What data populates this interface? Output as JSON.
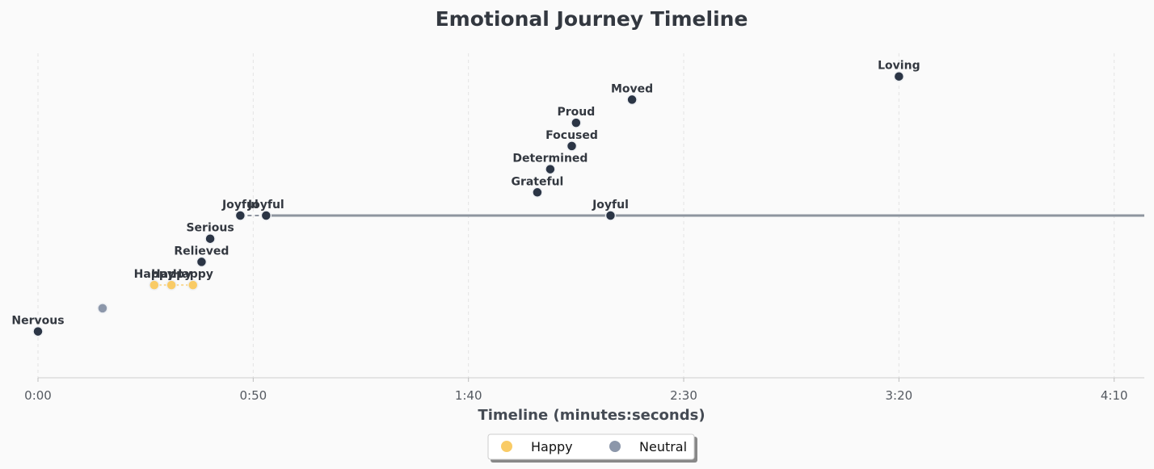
{
  "chart_data": {
    "type": "scatter",
    "title": "Emotional Journey Timeline",
    "xlabel": "Timeline (minutes:seconds)",
    "ylabel": "",
    "xlim": [
      0,
      257
    ],
    "ylim": [
      -2,
      12
    ],
    "x_ticks": [
      {
        "value": 0,
        "label": "0:00"
      },
      {
        "value": 50,
        "label": "0:50"
      },
      {
        "value": 100,
        "label": "1:40"
      },
      {
        "value": 150,
        "label": "2:30"
      },
      {
        "value": 200,
        "label": "3:20"
      },
      {
        "value": 250,
        "label": "4:10"
      }
    ],
    "grid": "x-dashed",
    "legend_position": "bottom-center",
    "colors": {
      "happy": "#f9cb66",
      "neutral": "#8c97aa",
      "other": "#2b3545",
      "line": "#8e959f"
    },
    "reference_line": {
      "y": 5,
      "x_start": 52,
      "x_end": 257
    },
    "points": [
      {
        "x": 0,
        "y": 0,
        "emotion": "Nervous",
        "category": "other",
        "label": "Nervous"
      },
      {
        "x": 15,
        "y": 1,
        "emotion": "Neutral",
        "category": "neutral",
        "label": ""
      },
      {
        "x": 27,
        "y": 2,
        "emotion": "Happy",
        "category": "happy",
        "label": "Happy"
      },
      {
        "x": 31,
        "y": 2,
        "emotion": "Happy",
        "category": "happy",
        "label": "Happy"
      },
      {
        "x": 36,
        "y": 2,
        "emotion": "Happy",
        "category": "happy",
        "label": "Happy"
      },
      {
        "x": 38,
        "y": 3,
        "emotion": "Relieved",
        "category": "other",
        "label": "Relieved"
      },
      {
        "x": 40,
        "y": 4,
        "emotion": "Serious",
        "category": "other",
        "label": "Serious"
      },
      {
        "x": 47,
        "y": 5,
        "emotion": "Joyful",
        "category": "other",
        "label": "Joyful"
      },
      {
        "x": 53,
        "y": 5,
        "emotion": "Joyful",
        "category": "other",
        "label": "Joyful"
      },
      {
        "x": 116,
        "y": 6,
        "emotion": "Grateful",
        "category": "other",
        "label": "Grateful"
      },
      {
        "x": 119,
        "y": 7,
        "emotion": "Determined",
        "category": "other",
        "label": "Determined"
      },
      {
        "x": 124,
        "y": 8,
        "emotion": "Focused",
        "category": "other",
        "label": "Focused"
      },
      {
        "x": 125,
        "y": 9,
        "emotion": "Proud",
        "category": "other",
        "label": "Proud"
      },
      {
        "x": 133,
        "y": 5,
        "emotion": "Joyful",
        "category": "other",
        "label": "Joyful"
      },
      {
        "x": 138,
        "y": 10,
        "emotion": "Moved",
        "category": "other",
        "label": "Moved"
      },
      {
        "x": 200,
        "y": 11,
        "emotion": "Loving",
        "category": "other",
        "label": "Loving"
      }
    ],
    "legend": [
      {
        "label": "Happy",
        "category": "happy"
      },
      {
        "label": "Neutral",
        "category": "neutral"
      }
    ]
  }
}
